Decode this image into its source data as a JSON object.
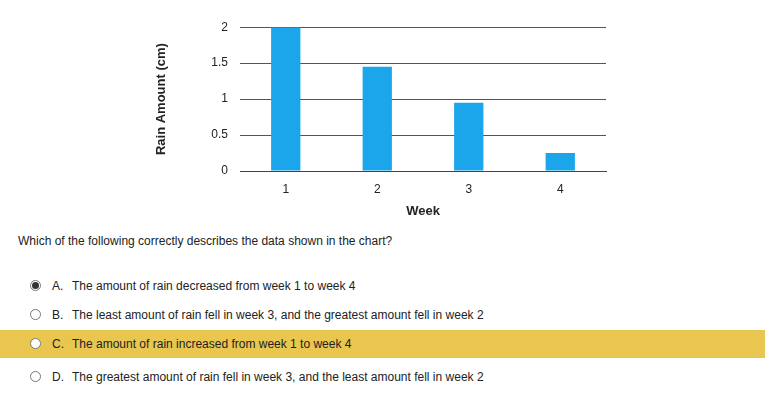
{
  "chart_data": {
    "type": "bar",
    "y_label": "Rain Amount (cm)",
    "x_label": "Week",
    "categories": [
      "1",
      "2",
      "3",
      "4"
    ],
    "values": [
      2,
      1.45,
      0.95,
      0.25
    ],
    "color": "#1ba5ea",
    "ylim": [
      0,
      2
    ],
    "yticks": [
      0,
      0.5,
      1,
      1.5,
      2
    ],
    "grid": true
  },
  "question": "Which of the following correctly describes the data shown in the chart?",
  "options": [
    {
      "letter": "A.",
      "text": "The amount of rain decreased from week 1 to week 4",
      "selected": true,
      "highlighted": false
    },
    {
      "letter": "B.",
      "text": "The least amount of rain fell in week 3, and the greatest amount fell in week 2",
      "selected": false,
      "highlighted": false
    },
    {
      "letter": "C.",
      "text": "The amount of rain increased from week 1 to week 4",
      "selected": false,
      "highlighted": true
    },
    {
      "letter": "D.",
      "text": "The greatest amount of rain fell in week 3, and the least amount fell in week 2",
      "selected": false,
      "highlighted": false
    }
  ]
}
